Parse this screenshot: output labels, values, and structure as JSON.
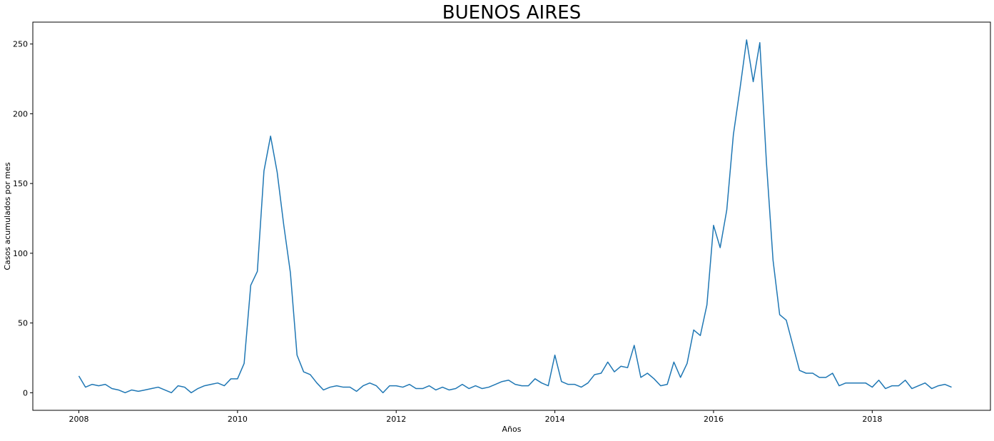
{
  "chart_data": {
    "type": "line",
    "title": "BUENOS AIRES",
    "xlabel": "Años",
    "ylabel": "Casos acumulados por mes",
    "xlim": [
      2007.42,
      2019.49
    ],
    "ylim": [
      -12.6,
      265.7
    ],
    "x_ticks": [
      2008,
      2010,
      2012,
      2014,
      2016,
      2018
    ],
    "x_tick_labels": [
      "2008",
      "2010",
      "2012",
      "2014",
      "2016",
      "2018"
    ],
    "y_ticks": [
      0,
      50,
      100,
      150,
      200,
      250
    ],
    "y_tick_labels": [
      "0",
      "50",
      "100",
      "150",
      "200",
      "250"
    ],
    "grid": false,
    "legend": "none",
    "line_color": "#1f77b4",
    "series": [
      {
        "x_start": 2008,
        "x_step_months": 1,
        "values": [
          12,
          4,
          6,
          5,
          6,
          3,
          2,
          0,
          2,
          1,
          2,
          3,
          4,
          2,
          0,
          5,
          4,
          0,
          3,
          5,
          6,
          7,
          5,
          10,
          10,
          21,
          77,
          87,
          159,
          184,
          158,
          120,
          86,
          27,
          15,
          13,
          7,
          2,
          4,
          5,
          4,
          4,
          1,
          5,
          7,
          5,
          0,
          5,
          5,
          4,
          6,
          3,
          3,
          5,
          2,
          4,
          2,
          3,
          6,
          3,
          5,
          3,
          4,
          6,
          8,
          9,
          6,
          5,
          5,
          10,
          7,
          5,
          27,
          8,
          6,
          6,
          4,
          7,
          13,
          14,
          22,
          15,
          19,
          18,
          34,
          11,
          14,
          10,
          5,
          6,
          22,
          11,
          21,
          45,
          41,
          63,
          120,
          104,
          131,
          185,
          218,
          253,
          223,
          251,
          165,
          95,
          56,
          52,
          34,
          16,
          14,
          14,
          11,
          11,
          14,
          5,
          7,
          7,
          7,
          7,
          4,
          9,
          3,
          5,
          5,
          9,
          3,
          5,
          7,
          3,
          5,
          6,
          4
        ]
      }
    ]
  }
}
